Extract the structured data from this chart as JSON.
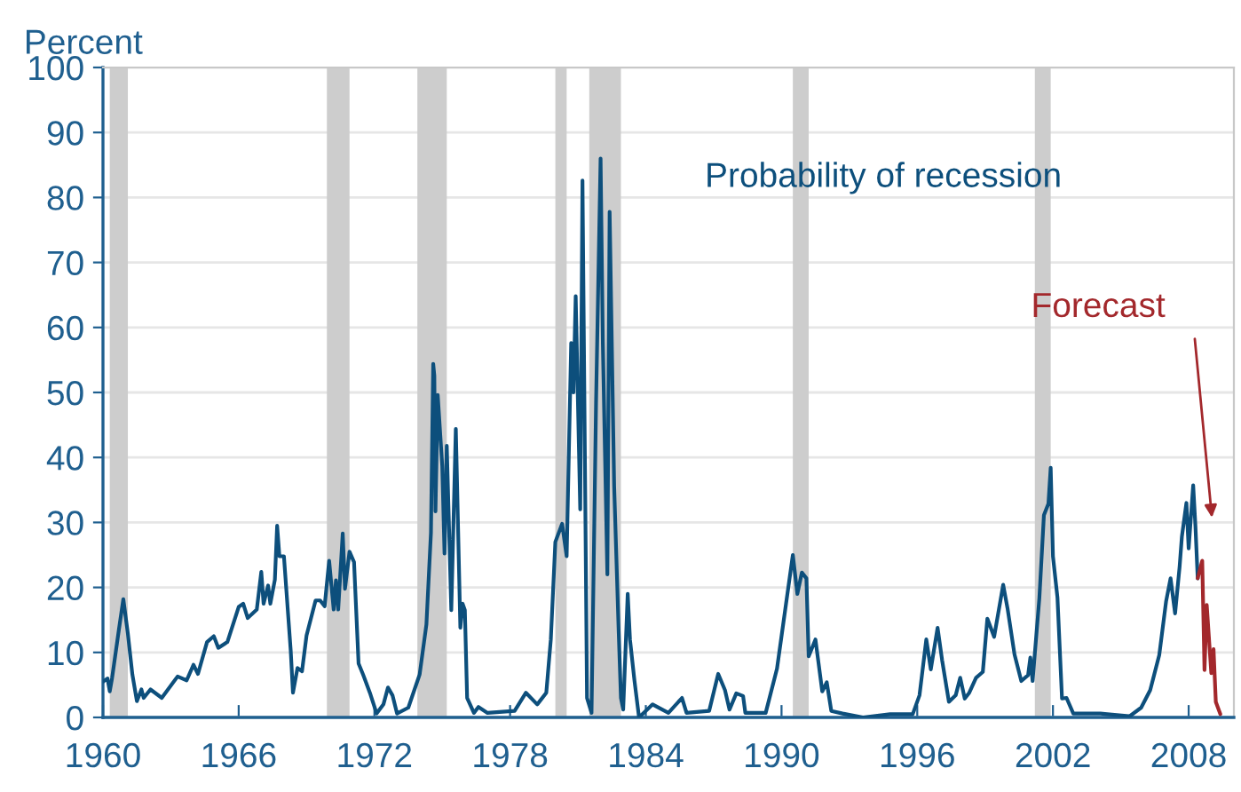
{
  "chart_data": {
    "type": "line",
    "ylabel": "Percent",
    "xlim": [
      1960,
      2010
    ],
    "xticks": [
      1960,
      1966,
      1972,
      1978,
      1984,
      1990,
      1996,
      2002,
      2008
    ],
    "ylim": [
      0,
      100
    ],
    "yticks": [
      0,
      10,
      20,
      30,
      40,
      50,
      60,
      70,
      80,
      90,
      100
    ],
    "grid": "y",
    "legend": false,
    "line_style": "solid",
    "marker": "none",
    "annotations": [
      "Probability of recession",
      "Forecast"
    ],
    "bands": [
      {
        "axis": "x",
        "from": 1960.3,
        "to": 1961.1,
        "color": "#cdcdcd"
      },
      {
        "axis": "x",
        "from": 1969.9,
        "to": 1970.9,
        "color": "#cdcdcd"
      },
      {
        "axis": "x",
        "from": 1973.9,
        "to": 1975.2,
        "color": "#cdcdcd"
      },
      {
        "axis": "x",
        "from": 1980.0,
        "to": 1980.5,
        "color": "#cdcdcd"
      },
      {
        "axis": "x",
        "from": 1981.5,
        "to": 1982.9,
        "color": "#cdcdcd"
      },
      {
        "axis": "x",
        "from": 1990.5,
        "to": 1991.2,
        "color": "#cdcdcd"
      },
      {
        "axis": "x",
        "from": 2001.2,
        "to": 2001.9,
        "color": "#cdcdcd"
      }
    ],
    "series": [
      {
        "color": "#0d4f7c",
        "x": [
          1960.0,
          1960.2,
          1960.3,
          1960.4,
          1960.7,
          1960.9,
          1961.1,
          1961.3,
          1961.5,
          1961.7,
          1961.8,
          1962.1,
          1962.6,
          1963.3,
          1963.7,
          1964.0,
          1964.2,
          1964.6,
          1964.9,
          1965.1,
          1965.5,
          1966.0,
          1966.2,
          1966.4,
          1966.8,
          1967.0,
          1967.1,
          1967.3,
          1967.4,
          1967.6,
          1967.7,
          1967.8,
          1968.0,
          1968.3,
          1968.4,
          1968.6,
          1968.8,
          1969.0,
          1969.4,
          1969.6,
          1969.8,
          1970.0,
          1970.2,
          1970.3,
          1970.4,
          1970.6,
          1970.7,
          1970.9,
          1971.1,
          1971.3,
          1971.5,
          1971.8,
          1972.1,
          1972.4,
          1972.6,
          1972.8,
          1973.0,
          1973.5,
          1974.0,
          1974.3,
          1974.5,
          1974.6,
          1974.65,
          1974.7,
          1974.8,
          1975.0,
          1975.1,
          1975.2,
          1975.4,
          1975.6,
          1975.8,
          1975.9,
          1976.0,
          1976.1,
          1976.4,
          1976.6,
          1977.0,
          1978.2,
          1978.7,
          1979.2,
          1979.6,
          1979.8,
          1980.0,
          1980.3,
          1980.5,
          1980.7,
          1980.8,
          1980.9,
          1981.1,
          1981.2,
          1981.4,
          1981.6,
          1981.8,
          1982.0,
          1982.1,
          1982.3,
          1982.4,
          1982.6,
          1982.8,
          1982.9,
          1983.0,
          1983.2,
          1983.3,
          1983.5,
          1983.7,
          1984.3,
          1985.0,
          1985.6,
          1985.8,
          1986.8,
          1987.2,
          1987.5,
          1987.7,
          1988.0,
          1988.3,
          1988.4,
          1989.3,
          1989.8,
          1990.2,
          1990.5,
          1990.7,
          1990.9,
          1991.1,
          1991.2,
          1991.5,
          1991.8,
          1992.0,
          1992.2,
          1992.7,
          1993.6,
          1994.8,
          1995.8,
          1996.1,
          1996.4,
          1996.6,
          1996.9,
          1997.1,
          1997.4,
          1997.7,
          1997.9,
          1998.1,
          1998.3,
          1998.6,
          1998.9,
          1999.1,
          1999.4,
          1999.8,
          2000.0,
          2000.3,
          2000.6,
          2000.9,
          2001.0,
          2001.1,
          2001.4,
          2001.6,
          2001.8,
          2001.9,
          2002.0,
          2002.2,
          2002.4,
          2002.6,
          2002.9,
          2004.1,
          2004.4,
          2005.4,
          2005.9,
          2006.3,
          2006.7,
          2007.0,
          2007.2,
          2007.4,
          2007.6,
          2007.7,
          2007.9,
          2008.0,
          2008.2,
          2008.3,
          2008.4
        ],
        "values": [
          5.5,
          6,
          4,
          6,
          13.4,
          18.2,
          12.9,
          6.6,
          2.5,
          4.3,
          3,
          4.3,
          3,
          6.3,
          5.7,
          8.1,
          6.7,
          11.6,
          12.5,
          10.7,
          11.6,
          17,
          17.5,
          15.3,
          16.6,
          22.4,
          17.5,
          20.3,
          17.5,
          21.2,
          29.5,
          24.8,
          24.8,
          10.3,
          3.8,
          7.6,
          7.1,
          12.6,
          18,
          18,
          17.1,
          24.1,
          16.6,
          21.1,
          16.6,
          28.3,
          19.8,
          25.5,
          23.9,
          8.3,
          6.6,
          3.8,
          0.6,
          2,
          4.6,
          3.4,
          0.6,
          1.5,
          6.6,
          14.3,
          28.4,
          54.4,
          52.6,
          31.7,
          49.6,
          38.7,
          25.2,
          41.8,
          16.5,
          44.4,
          13.8,
          17.5,
          16.5,
          3,
          0.7,
          1.6,
          0.7,
          1,
          3.8,
          2,
          3.8,
          12,
          27,
          29.8,
          24.8,
          57.6,
          50,
          64.8,
          32,
          82.6,
          3,
          0.7,
          48.4,
          86,
          57.6,
          22,
          77.8,
          35.6,
          13.3,
          3,
          1.2,
          19,
          12,
          5.6,
          0,
          2,
          0.7,
          3,
          0.7,
          1,
          6.7,
          4.2,
          1.2,
          3.7,
          3.3,
          0.7,
          0.7,
          7.5,
          17.5,
          25,
          19,
          22.3,
          21.4,
          9.4,
          12,
          4,
          5.4,
          1,
          0.6,
          0,
          0.5,
          0.5,
          3.4,
          12,
          7.4,
          13.8,
          8.8,
          2.4,
          3.4,
          6.1,
          2.9,
          3.8,
          6.1,
          7,
          15.2,
          12.4,
          20.4,
          16.6,
          9.7,
          5.6,
          6.5,
          9.2,
          5.6,
          18.4,
          31.1,
          32.9,
          38.4,
          24.8,
          18.4,
          2.9,
          3,
          0.6,
          0.6,
          0.5,
          0.2,
          1.5,
          4.2,
          9.6,
          17.8,
          21.4,
          16,
          23.2,
          27.8,
          33,
          26,
          35.7,
          29.4,
          21.4
        ]
      },
      {
        "color": "#a3282c",
        "x": [
          2008.4,
          2008.6,
          2008.7,
          2008.8,
          2009.0,
          2009.1,
          2009.2,
          2009.4
        ],
        "values": [
          21.4,
          24.1,
          7.3,
          17.3,
          6.8,
          10.5,
          2.4,
          0.5
        ]
      }
    ]
  }
}
